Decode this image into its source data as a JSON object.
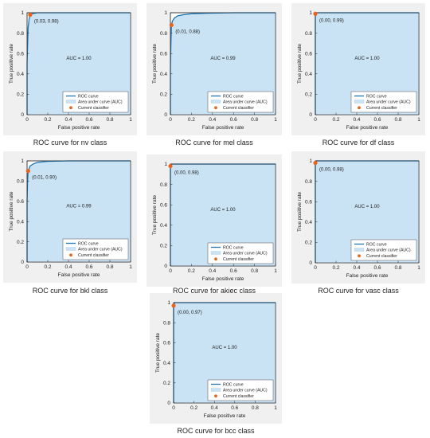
{
  "legend": {
    "roc": "ROC curve",
    "area": "Area under curve (AUC)",
    "current": "Current classifier"
  },
  "colors": {
    "curve": "#1f77b4",
    "fill": "#c9e2f4",
    "point": "#e8641c",
    "axes_bg": "#ffffff",
    "panel_bg": "#f0f0f0"
  },
  "chart_data": [
    {
      "type": "area",
      "caption": "ROC curve for nv class",
      "xlabel": "False positive rate",
      "ylabel": "True positive rate",
      "xlim": [
        0,
        1
      ],
      "ylim": [
        0,
        1
      ],
      "xticks": [
        "0",
        "0.2",
        "0.4",
        "0.6",
        "0.8",
        "1"
      ],
      "yticks": [
        "0",
        "0.2",
        "0.4",
        "0.6",
        "0.8",
        "1"
      ],
      "series": [
        {
          "x": [
            0,
            0.0,
            0.01,
            0.02,
            0.03,
            0.05,
            0.1,
            0.3,
            1
          ],
          "y": [
            0,
            0.5,
            0.85,
            0.94,
            0.98,
            0.99,
            1,
            1,
            1
          ]
        }
      ],
      "point": {
        "x": 0.03,
        "y": 0.98,
        "label": "(0.03, 0.98)"
      },
      "auc_label": "AUC = 1.00",
      "legend_position": "bottom-right"
    },
    {
      "type": "area",
      "caption": "ROC curve for mel class",
      "xlabel": "False positive rate",
      "ylabel": "True positive rate",
      "xlim": [
        0,
        1
      ],
      "ylim": [
        0,
        1
      ],
      "xticks": [
        "0",
        "0.2",
        "0.4",
        "0.6",
        "0.8",
        "1"
      ],
      "yticks": [
        "0",
        "0.2",
        "0.4",
        "0.6",
        "0.8",
        "1"
      ],
      "series": [
        {
          "x": [
            0,
            0.0,
            0.005,
            0.01,
            0.02,
            0.04,
            0.07,
            0.12,
            0.2,
            0.35,
            0.6,
            1
          ],
          "y": [
            0,
            0.45,
            0.7,
            0.88,
            0.92,
            0.95,
            0.97,
            0.98,
            0.99,
            0.995,
            1,
            1
          ]
        }
      ],
      "point": {
        "x": 0.01,
        "y": 0.88,
        "label": "(0.01, 0.88)"
      },
      "auc_label": "AUC = 0.99",
      "legend_position": "bottom-right"
    },
    {
      "type": "area",
      "caption": "ROC curve for df class",
      "xlabel": "False positive rate",
      "ylabel": "True positive rate",
      "xlim": [
        0,
        1
      ],
      "ylim": [
        0,
        1
      ],
      "xticks": [
        "0",
        "0.2",
        "0.4",
        "0.6",
        "0.8",
        "1"
      ],
      "yticks": [
        "0",
        "0.2",
        "0.4",
        "0.6",
        "0.8",
        "1"
      ],
      "series": [
        {
          "x": [
            0,
            0.0,
            0.0,
            0.01,
            1
          ],
          "y": [
            0,
            0.9,
            0.99,
            1,
            1
          ]
        }
      ],
      "point": {
        "x": 0.0,
        "y": 0.99,
        "label": "(0.00, 0.99)"
      },
      "auc_label": "AUC = 1.00",
      "legend_position": "bottom-right"
    },
    {
      "type": "area",
      "caption": "ROC curve for bkl class",
      "xlabel": "False positive rate",
      "ylabel": "True positive rate",
      "xlim": [
        0,
        1
      ],
      "ylim": [
        0,
        1
      ],
      "xticks": [
        "0",
        "0.2",
        "0.4",
        "0.6",
        "0.8",
        "1"
      ],
      "yticks": [
        "0",
        "0.2",
        "0.4",
        "0.6",
        "0.8",
        "1"
      ],
      "series": [
        {
          "x": [
            0,
            0.0,
            0.005,
            0.01,
            0.03,
            0.06,
            0.1,
            0.2,
            0.4,
            1
          ],
          "y": [
            0,
            0.6,
            0.8,
            0.9,
            0.95,
            0.97,
            0.985,
            0.995,
            1,
            1
          ]
        }
      ],
      "point": {
        "x": 0.01,
        "y": 0.9,
        "label": "(0.01, 0.90)"
      },
      "auc_label": "AUC = 0.99",
      "legend_position": "bottom-right"
    },
    {
      "type": "area",
      "caption": "ROC curve for akiec class",
      "xlabel": "False positive rate",
      "ylabel": "True positive rate",
      "xlim": [
        0,
        1
      ],
      "ylim": [
        0,
        1
      ],
      "xticks": [
        "0",
        "0.2",
        "0.4",
        "0.6",
        "0.8",
        "1"
      ],
      "yticks": [
        "0",
        "0.2",
        "0.4",
        "0.6",
        "0.8",
        "1"
      ],
      "series": [
        {
          "x": [
            0,
            0.0,
            0.0,
            0.01,
            1
          ],
          "y": [
            0,
            0.9,
            0.98,
            1,
            1
          ]
        }
      ],
      "point": {
        "x": 0.0,
        "y": 0.98,
        "label": "(0.00, 0.98)"
      },
      "auc_label": "AUC = 1.00",
      "legend_position": "bottom-right"
    },
    {
      "type": "area",
      "caption": "ROC curve for vasc class",
      "xlabel": "False positive rate",
      "ylabel": "True positive rate",
      "xlim": [
        0,
        1
      ],
      "ylim": [
        0,
        1
      ],
      "xticks": [
        "0",
        "0.2",
        "0.4",
        "0.6",
        "0.8",
        "1"
      ],
      "yticks": [
        "0",
        "0.2",
        "0.4",
        "0.6",
        "0.8",
        "1"
      ],
      "series": [
        {
          "x": [
            0,
            0.0,
            0.0,
            0.01,
            1
          ],
          "y": [
            0,
            0.9,
            0.98,
            1,
            1
          ]
        }
      ],
      "point": {
        "x": 0.0,
        "y": 0.98,
        "label": "(0.00, 0.98)"
      },
      "auc_label": "AUC = 1.00",
      "legend_position": "bottom-right"
    },
    {
      "type": "area",
      "caption": "ROC curve for bcc class",
      "xlabel": "False positive rate",
      "ylabel": "True positive rate",
      "xlim": [
        0,
        1
      ],
      "ylim": [
        0,
        1
      ],
      "xticks": [
        "0",
        "0.2",
        "0.4",
        "0.6",
        "0.8",
        "1"
      ],
      "yticks": [
        "0",
        "0.2",
        "0.4",
        "0.6",
        "0.8",
        "1"
      ],
      "series": [
        {
          "x": [
            0,
            0.0,
            0.0,
            0.01,
            1
          ],
          "y": [
            0,
            0.9,
            0.97,
            1,
            1
          ]
        }
      ],
      "point": {
        "x": 0.0,
        "y": 0.97,
        "label": "(0.00, 0.97)"
      },
      "auc_label": "AUC = 1.00",
      "legend_position": "bottom-right"
    }
  ]
}
